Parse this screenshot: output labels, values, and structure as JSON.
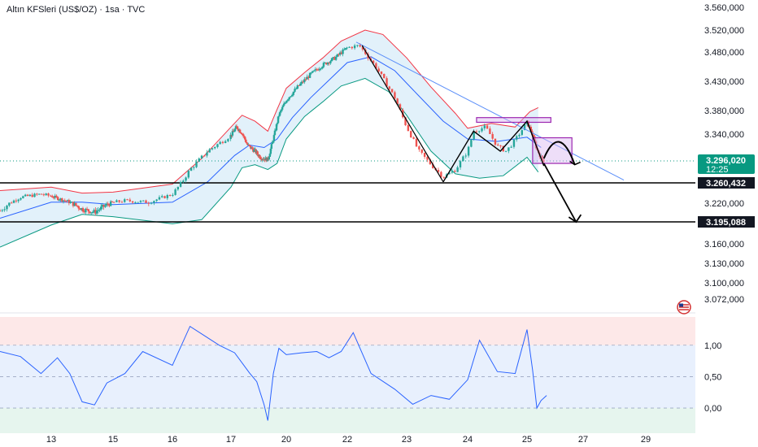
{
  "header": {
    "title": "Altın KFSleri (US$/OZ) · 1sa · TVC"
  },
  "colors": {
    "up": "#26a69a",
    "down": "#ef5350",
    "upper_band": "#f23645",
    "lower_band": "#089981",
    "basis": "#2962ff",
    "band_fill": "#ddeef9",
    "trendline": "#5b8ff9",
    "pattern_box": "#9c27b0",
    "pattern_fill": "#d9b6f0",
    "rsi_line": "#2962ff",
    "rsi_upper_zone": "#fde8e8",
    "rsi_mid_zone": "#e8f0fd",
    "rsi_lower_zone": "#e6f5ee",
    "current_price_badge": "#089981",
    "level_badge": "#131722"
  },
  "icons": {
    "logo": "tradingview-flag-icon"
  },
  "chart_data": {
    "type": "candlestick",
    "title": "Altın KFSleri (US$/OZ) · 1sa · TVC",
    "x_ticks": [
      "13",
      "15",
      "16",
      "17",
      "20",
      "22",
      "23",
      "24",
      "25",
      "27",
      "29"
    ],
    "x_tick_days": [
      13,
      15,
      16,
      17,
      20,
      22,
      23,
      24,
      25,
      27,
      29
    ],
    "price_axis": {
      "ticks": [
        "3.560,000",
        "3.520,000",
        "3.480,000",
        "3.430,000",
        "3.380,000",
        "3.340,000",
        "3.220,000",
        "3.160,000",
        "3.130,000",
        "3.100,000",
        "3.072,000"
      ],
      "tick_values": [
        3560,
        3520,
        3480,
        3430,
        3380,
        3340,
        3220,
        3160,
        3130,
        3100,
        3072
      ],
      "ylim": [
        3040,
        3580
      ]
    },
    "current_price": {
      "label": "3.296,020",
      "countdown": "12:25",
      "value": 3296.02
    },
    "levels": [
      {
        "label": "3.260,432",
        "value": 3260.432
      },
      {
        "label": "3.195,088",
        "value": 3195.088
      }
    ],
    "price_path": [
      [
        12.0,
        3210
      ],
      [
        12.4,
        3232
      ],
      [
        12.8,
        3238
      ],
      [
        13.2,
        3230
      ],
      [
        13.6,
        3222
      ],
      [
        14.0,
        3212
      ],
      [
        14.4,
        3208
      ],
      [
        14.8,
        3218
      ],
      [
        15.2,
        3225
      ],
      [
        15.6,
        3222
      ],
      [
        16.0,
        3238
      ],
      [
        16.3,
        3282
      ],
      [
        16.6,
        3312
      ],
      [
        17.0,
        3338
      ],
      [
        17.3,
        3352
      ],
      [
        17.6,
        3342
      ],
      [
        17.9,
        3322
      ],
      [
        18.3,
        3312
      ],
      [
        18.6,
        3302
      ],
      [
        19.0,
        3298
      ],
      [
        19.3,
        3332
      ],
      [
        19.6,
        3372
      ],
      [
        20.0,
        3398
      ],
      [
        20.4,
        3422
      ],
      [
        20.8,
        3442
      ],
      [
        21.2,
        3458
      ],
      [
        21.6,
        3470
      ],
      [
        22.0,
        3488
      ],
      [
        22.2,
        3492
      ],
      [
        22.5,
        3452
      ],
      [
        22.8,
        3402
      ],
      [
        23.0,
        3352
      ],
      [
        23.2,
        3312
      ],
      [
        23.4,
        3290
      ],
      [
        23.6,
        3270
      ],
      [
        23.8,
        3282
      ],
      [
        24.0,
        3312
      ],
      [
        24.1,
        3345
      ],
      [
        24.3,
        3352
      ],
      [
        24.5,
        3320
      ],
      [
        24.65,
        3312
      ],
      [
        24.8,
        3330
      ],
      [
        25.0,
        3360
      ],
      [
        25.15,
        3345
      ],
      [
        25.35,
        3315
      ],
      [
        25.5,
        3302
      ],
      [
        25.6,
        3296
      ]
    ],
    "bollinger": {
      "upper": [
        [
          12.0,
          3245
        ],
        [
          13.0,
          3252
        ],
        [
          14.0,
          3240
        ],
        [
          15.0,
          3242
        ],
        [
          16.0,
          3258
        ],
        [
          16.5,
          3300
        ],
        [
          17.0,
          3352
        ],
        [
          17.6,
          3372
        ],
        [
          18.3,
          3362
        ],
        [
          19.0,
          3345
        ],
        [
          19.5,
          3382
        ],
        [
          20.0,
          3418
        ],
        [
          20.6,
          3445
        ],
        [
          21.2,
          3470
        ],
        [
          21.8,
          3500
        ],
        [
          22.3,
          3520
        ],
        [
          22.6,
          3512
        ],
        [
          23.0,
          3470
        ],
        [
          23.4,
          3420
        ],
        [
          23.8,
          3375
        ],
        [
          24.0,
          3350
        ],
        [
          24.4,
          3358
        ],
        [
          24.8,
          3352
        ],
        [
          25.1,
          3378
        ],
        [
          25.4,
          3385
        ]
      ],
      "basis": [
        [
          12.0,
          3200
        ],
        [
          13.0,
          3222
        ],
        [
          14.0,
          3222
        ],
        [
          15.0,
          3218
        ],
        [
          16.0,
          3222
        ],
        [
          16.6,
          3262
        ],
        [
          17.2,
          3305
        ],
        [
          18.0,
          3322
        ],
        [
          18.8,
          3318
        ],
        [
          19.5,
          3332
        ],
        [
          20.2,
          3368
        ],
        [
          20.8,
          3402
        ],
        [
          21.4,
          3432
        ],
        [
          22.0,
          3462
        ],
        [
          22.4,
          3472
        ],
        [
          22.8,
          3448
        ],
        [
          23.2,
          3405
        ],
        [
          23.6,
          3362
        ],
        [
          24.0,
          3332
        ],
        [
          24.5,
          3328
        ],
        [
          25.0,
          3335
        ],
        [
          25.5,
          3318
        ]
      ],
      "lower": [
        [
          12.0,
          3155
        ],
        [
          13.0,
          3190
        ],
        [
          14.0,
          3205
        ],
        [
          15.0,
          3202
        ],
        [
          16.0,
          3192
        ],
        [
          16.5,
          3198
        ],
        [
          17.0,
          3252
        ],
        [
          17.6,
          3285
        ],
        [
          18.3,
          3290
        ],
        [
          19.0,
          3282
        ],
        [
          19.5,
          3292
        ],
        [
          20.0,
          3332
        ],
        [
          20.6,
          3370
        ],
        [
          21.2,
          3395
        ],
        [
          21.8,
          3422
        ],
        [
          22.3,
          3435
        ],
        [
          22.7,
          3412
        ],
        [
          23.0,
          3372
        ],
        [
          23.4,
          3312
        ],
        [
          23.8,
          3275
        ],
        [
          24.2,
          3268
        ],
        [
          24.6,
          3272
        ],
        [
          25.0,
          3302
        ],
        [
          25.4,
          3278
        ]
      ]
    },
    "trendline": {
      "from": [
        22.15,
        3498
      ],
      "to": [
        28.3,
        3265
      ]
    },
    "annotations": {
      "upper_box": {
        "x": [
          24.15,
          25.85
        ],
        "y": [
          3360,
          3368
        ]
      },
      "lower_box": {
        "x": [
          25.2,
          26.6
        ],
        "y": [
          3292,
          3334
        ]
      },
      "arc": {
        "start": [
          25.6,
          3300
        ],
        "peak": [
          26.15,
          3330
        ],
        "end": [
          26.7,
          3290
        ]
      },
      "w_pattern": [
        [
          23.6,
          3262
        ],
        [
          24.1,
          3345
        ],
        [
          24.55,
          3312
        ],
        [
          25.0,
          3362
        ],
        [
          25.6,
          3288
        ]
      ],
      "arrow": {
        "from": [
          25.6,
          3292
        ],
        "to": [
          26.75,
          3195
        ]
      }
    },
    "rsi": {
      "ticks": [
        "1,00",
        "0,50",
        "0,00"
      ],
      "tick_values": [
        1.0,
        0.5,
        0.0
      ],
      "ylim": [
        -0.4,
        1.45
      ],
      "values": [
        [
          12.0,
          0.9
        ],
        [
          12.4,
          0.82
        ],
        [
          12.8,
          0.55
        ],
        [
          13.2,
          0.8
        ],
        [
          13.6,
          0.55
        ],
        [
          14.0,
          0.1
        ],
        [
          14.4,
          0.05
        ],
        [
          14.8,
          0.4
        ],
        [
          15.2,
          0.55
        ],
        [
          15.5,
          0.9
        ],
        [
          16.0,
          0.68
        ],
        [
          16.3,
          1.3
        ],
        [
          16.8,
          1.0
        ],
        [
          17.2,
          0.88
        ],
        [
          17.6,
          0.72
        ],
        [
          18.0,
          0.56
        ],
        [
          18.4,
          0.42
        ],
        [
          18.8,
          0.05
        ],
        [
          19.0,
          -0.2
        ],
        [
          19.3,
          0.55
        ],
        [
          19.6,
          0.95
        ],
        [
          20.0,
          0.85
        ],
        [
          20.5,
          0.88
        ],
        [
          21.0,
          0.9
        ],
        [
          21.4,
          0.8
        ],
        [
          21.8,
          0.9
        ],
        [
          22.1,
          1.2
        ],
        [
          22.4,
          0.55
        ],
        [
          22.8,
          0.3
        ],
        [
          23.1,
          0.06
        ],
        [
          23.4,
          0.2
        ],
        [
          23.7,
          0.14
        ],
        [
          24.0,
          0.45
        ],
        [
          24.2,
          1.08
        ],
        [
          24.5,
          0.58
        ],
        [
          24.8,
          0.55
        ],
        [
          25.0,
          1.25
        ],
        [
          25.2,
          0.6
        ],
        [
          25.35,
          0.0
        ],
        [
          25.5,
          0.12
        ],
        [
          25.7,
          0.2
        ]
      ]
    }
  }
}
